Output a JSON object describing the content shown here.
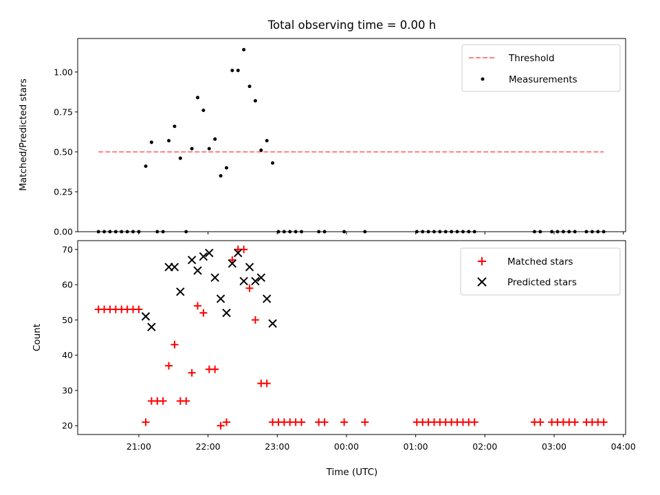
{
  "title": "Total observing time = 0.00 h",
  "chart_data": [
    {
      "type": "scatter",
      "panel": "top",
      "ylabel": "Matched/Predicted stars",
      "ylim": [
        0,
        1.21
      ],
      "yticks": [
        "0.00",
        "0.25",
        "0.50",
        "0.75",
        "1.00"
      ],
      "xlim": [
        "20:07",
        "04:02"
      ],
      "legend": {
        "position": "top-right"
      },
      "series": [
        {
          "name": "Threshold",
          "kind": "dashed-line",
          "color": "#ff7f7f",
          "x": [
            "20:25",
            "03:43"
          ],
          "y": [
            0.5,
            0.5
          ]
        },
        {
          "name": "Measurements",
          "kind": "dots",
          "color": "#000000",
          "points": [
            [
              "20:25",
              0
            ],
            [
              "20:30",
              0
            ],
            [
              "20:35",
              0
            ],
            [
              "20:40",
              0
            ],
            [
              "20:45",
              0
            ],
            [
              "20:50",
              0
            ],
            [
              "20:55",
              0
            ],
            [
              "21:00",
              0
            ],
            [
              "21:06",
              0.41
            ],
            [
              "21:11",
              0.56
            ],
            [
              "21:16",
              0
            ],
            [
              "21:21",
              0
            ],
            [
              "21:26",
              0.57
            ],
            [
              "21:31",
              0.66
            ],
            [
              "21:36",
              0.46
            ],
            [
              "21:41",
              0
            ],
            [
              "21:46",
              0.52
            ],
            [
              "21:51",
              0.84
            ],
            [
              "21:56",
              0.76
            ],
            [
              "22:01",
              0.52
            ],
            [
              "22:06",
              0.58
            ],
            [
              "22:11",
              0.35
            ],
            [
              "22:16",
              0.4
            ],
            [
              "22:21",
              1.01
            ],
            [
              "22:26",
              1.01
            ],
            [
              "22:31",
              1.14
            ],
            [
              "22:36",
              0.91
            ],
            [
              "22:41",
              0.82
            ],
            [
              "22:46",
              0.51
            ],
            [
              "22:51",
              0.57
            ],
            [
              "22:56",
              0.43
            ],
            [
              "23:01",
              0
            ],
            [
              "23:06",
              0
            ],
            [
              "23:11",
              0
            ],
            [
              "23:16",
              0
            ],
            [
              "23:21",
              0
            ],
            [
              "23:36",
              0
            ],
            [
              "23:41",
              0
            ],
            [
              "23:58",
              0
            ],
            [
              "00:16",
              0
            ],
            [
              "01:01",
              0
            ],
            [
              "01:06",
              0
            ],
            [
              "01:11",
              0
            ],
            [
              "01:16",
              0
            ],
            [
              "01:21",
              0
            ],
            [
              "01:26",
              0
            ],
            [
              "01:31",
              0
            ],
            [
              "01:36",
              0
            ],
            [
              "01:41",
              0
            ],
            [
              "01:46",
              0
            ],
            [
              "01:51",
              0
            ],
            [
              "02:43",
              0
            ],
            [
              "02:48",
              0
            ],
            [
              "02:58",
              0
            ],
            [
              "03:03",
              0
            ],
            [
              "03:08",
              0
            ],
            [
              "03:13",
              0
            ],
            [
              "03:18",
              0
            ],
            [
              "03:28",
              0
            ],
            [
              "03:33",
              0
            ],
            [
              "03:38",
              0
            ],
            [
              "03:43",
              0
            ]
          ]
        }
      ]
    },
    {
      "type": "scatter",
      "panel": "bottom",
      "ylabel": "Count",
      "xlabel": "Time (UTC)",
      "ylim": [
        17.5,
        72.5
      ],
      "yticks": [
        "20",
        "30",
        "40",
        "50",
        "60",
        "70"
      ],
      "xlim": [
        "20:07",
        "04:02"
      ],
      "xticks": [
        "21:00",
        "22:00",
        "23:00",
        "00:00",
        "01:00",
        "02:00",
        "03:00",
        "04:00"
      ],
      "legend": {
        "position": "top-right"
      },
      "series": [
        {
          "name": "Matched stars",
          "kind": "plus",
          "color": "#ff0000",
          "points": [
            [
              "20:25",
              53
            ],
            [
              "20:30",
              53
            ],
            [
              "20:35",
              53
            ],
            [
              "20:40",
              53
            ],
            [
              "20:45",
              53
            ],
            [
              "20:50",
              53
            ],
            [
              "20:55",
              53
            ],
            [
              "21:00",
              53
            ],
            [
              "21:06",
              21
            ],
            [
              "21:11",
              27
            ],
            [
              "21:16",
              27
            ],
            [
              "21:21",
              27
            ],
            [
              "21:26",
              37
            ],
            [
              "21:31",
              43
            ],
            [
              "21:36",
              27
            ],
            [
              "21:41",
              27
            ],
            [
              "21:46",
              35
            ],
            [
              "21:51",
              54
            ],
            [
              "21:56",
              52
            ],
            [
              "22:01",
              36
            ],
            [
              "22:06",
              36
            ],
            [
              "22:11",
              20
            ],
            [
              "22:16",
              21
            ],
            [
              "22:21",
              67
            ],
            [
              "22:26",
              70
            ],
            [
              "22:31",
              70
            ],
            [
              "22:36",
              59
            ],
            [
              "22:41",
              50
            ],
            [
              "22:46",
              32
            ],
            [
              "22:51",
              32
            ],
            [
              "22:56",
              21
            ],
            [
              "23:01",
              21
            ],
            [
              "23:06",
              21
            ],
            [
              "23:11",
              21
            ],
            [
              "23:16",
              21
            ],
            [
              "23:21",
              21
            ],
            [
              "23:36",
              21
            ],
            [
              "23:41",
              21
            ],
            [
              "23:58",
              21
            ],
            [
              "00:16",
              21
            ],
            [
              "01:01",
              21
            ],
            [
              "01:06",
              21
            ],
            [
              "01:11",
              21
            ],
            [
              "01:16",
              21
            ],
            [
              "01:21",
              21
            ],
            [
              "01:26",
              21
            ],
            [
              "01:31",
              21
            ],
            [
              "01:36",
              21
            ],
            [
              "01:41",
              21
            ],
            [
              "01:46",
              21
            ],
            [
              "01:51",
              21
            ],
            [
              "02:43",
              21
            ],
            [
              "02:48",
              21
            ],
            [
              "02:58",
              21
            ],
            [
              "03:03",
              21
            ],
            [
              "03:08",
              21
            ],
            [
              "03:13",
              21
            ],
            [
              "03:18",
              21
            ],
            [
              "03:28",
              21
            ],
            [
              "03:33",
              21
            ],
            [
              "03:38",
              21
            ],
            [
              "03:43",
              21
            ]
          ]
        },
        {
          "name": "Predicted stars",
          "kind": "x",
          "color": "#000000",
          "points": [
            [
              "21:06",
              51
            ],
            [
              "21:11",
              48
            ],
            [
              "21:26",
              65
            ],
            [
              "21:31",
              65
            ],
            [
              "21:36",
              58
            ],
            [
              "21:46",
              67
            ],
            [
              "21:51",
              64
            ],
            [
              "21:56",
              68
            ],
            [
              "22:01",
              69
            ],
            [
              "22:06",
              62
            ],
            [
              "22:11",
              56
            ],
            [
              "22:16",
              52
            ],
            [
              "22:21",
              66
            ],
            [
              "22:26",
              69
            ],
            [
              "22:31",
              61
            ],
            [
              "22:36",
              65
            ],
            [
              "22:41",
              61
            ],
            [
              "22:46",
              62
            ],
            [
              "22:51",
              56
            ],
            [
              "22:56",
              49
            ]
          ]
        }
      ]
    }
  ]
}
